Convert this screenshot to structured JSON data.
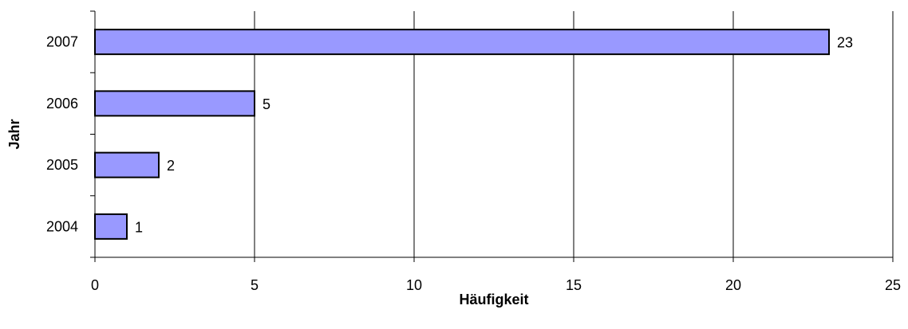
{
  "chart_data": {
    "type": "bar",
    "orientation": "horizontal",
    "categories": [
      "2004",
      "2005",
      "2006",
      "2007"
    ],
    "values": [
      1,
      2,
      5,
      23
    ],
    "xlabel": "Häufigkeit",
    "ylabel": "Jahr",
    "xlim": [
      0,
      25
    ],
    "xticks": [
      0,
      5,
      10,
      15,
      20,
      25
    ],
    "grid": "vertical",
    "legend": "none",
    "data_labels": true,
    "bar_color": "#9999ff",
    "bar_edge_color": "#000000"
  }
}
